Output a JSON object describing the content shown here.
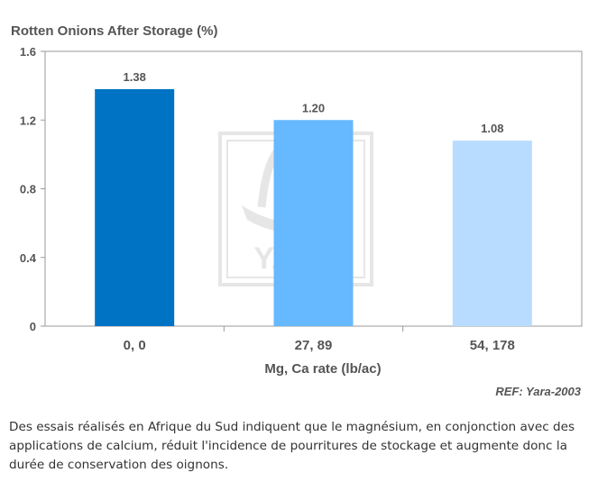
{
  "chart_data": {
    "type": "bar",
    "title": "Rotten Onions After Storage (%)",
    "categories": [
      "0, 0",
      "27, 89",
      "54, 178"
    ],
    "values": [
      1.38,
      1.2,
      1.08
    ],
    "value_labels": [
      "1.38",
      "1.20",
      "1.08"
    ],
    "bar_colors": [
      "#0073c5",
      "#66b8ff",
      "#b8dcff"
    ],
    "xlabel": "Mg, Ca rate (lb/ac)",
    "ylabel": "",
    "ylim": [
      0,
      1.6
    ],
    "yticks": [
      0,
      0.4,
      0.8,
      1.2,
      1.6
    ],
    "ytick_labels": [
      "0",
      "0.4",
      "0.8",
      "1.2",
      "1.6"
    ],
    "grid": false,
    "reference": "REF: Yara-2003",
    "watermark": "YARA"
  },
  "caption": "Des essais réalisés en Afrique du Sud indiquent que le magnésium, en conjonction avec des applications de calcium, réduit l'incidence de pourritures de stockage et augmente donc la durée de conservation des oignons.",
  "colors": {
    "axis": "#9a9a9a",
    "text": "#555555",
    "watermark": "#e6e6e6"
  }
}
